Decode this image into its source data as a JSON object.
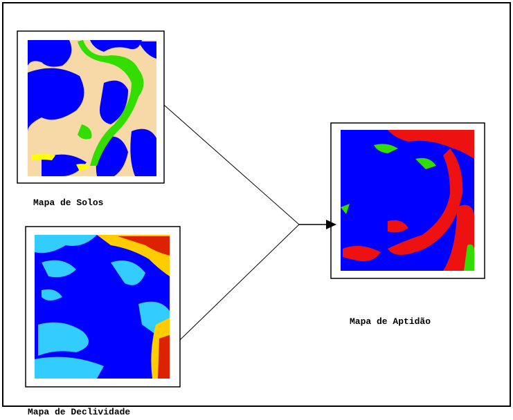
{
  "maps": [
    {
      "label": "Mapa de Solos"
    },
    {
      "label": "Mapa de Declividade"
    },
    {
      "label": "Mapa de Aptidão"
    }
  ]
}
